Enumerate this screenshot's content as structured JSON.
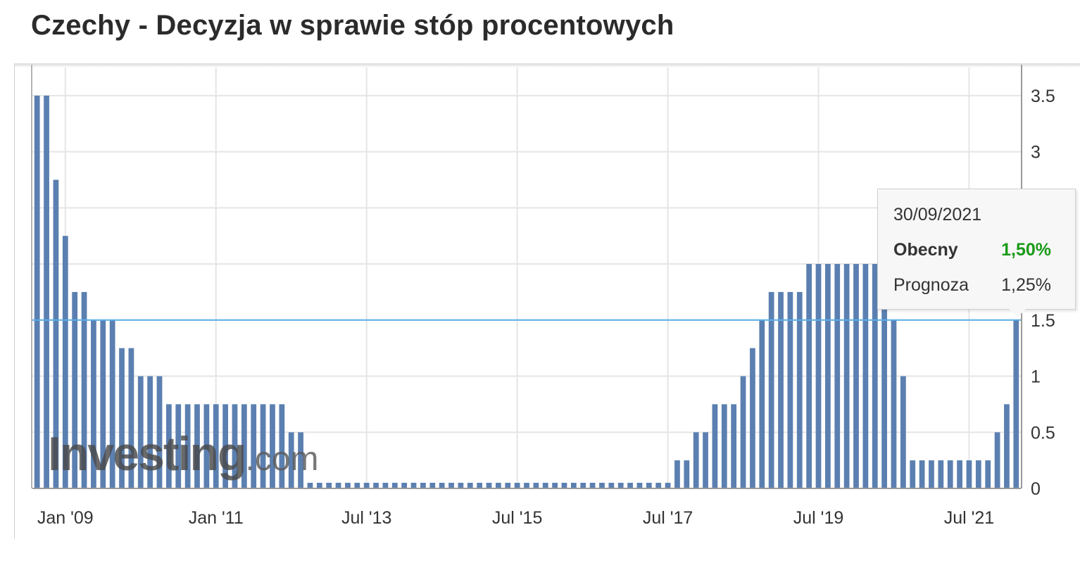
{
  "title": "Czechy - Decyzja w sprawie stóp procentowych",
  "colors": {
    "bar": "#5b7fb0",
    "current_line": "#5aaee8",
    "grid": "#e5e5e5",
    "tooltip_current": "#1a9a1a"
  },
  "tooltip": {
    "date": "30/09/2021",
    "current_label": "Obecny",
    "current_value": "1,50%",
    "forecast_label": "Prognoza",
    "forecast_value": "1,25%"
  },
  "watermark": {
    "main": "Investing",
    "suffix": ".com"
  },
  "chart_data": {
    "type": "bar",
    "title": "Czechy - Decyzja w sprawie stóp procentowych",
    "xlabel": "",
    "ylabel": "",
    "ylim": [
      0,
      3.75
    ],
    "y_ticks": [
      0,
      0.5,
      1,
      1.5,
      2,
      2.5,
      3,
      3.5
    ],
    "y_tick_labels": [
      "0",
      "0.5",
      "1",
      "1.5",
      "2",
      "2.5",
      "3",
      "3.5"
    ],
    "y_axis_position": "right",
    "x_tick_labels": [
      "Jan '09",
      "Jan '11",
      "Jul '13",
      "Jul '15",
      "Jul '17",
      "Jul '19",
      "Jul '21"
    ],
    "x_ticks_index": [
      3,
      19,
      35,
      51,
      67,
      83,
      99
    ],
    "grid": true,
    "current_value_line": 1.5,
    "values": [
      3.5,
      3.5,
      2.75,
      2.25,
      1.75,
      1.75,
      1.5,
      1.5,
      1.5,
      1.25,
      1.25,
      1.0,
      1.0,
      1.0,
      0.75,
      0.75,
      0.75,
      0.75,
      0.75,
      0.75,
      0.75,
      0.75,
      0.75,
      0.75,
      0.75,
      0.75,
      0.75,
      0.5,
      0.5,
      0.05,
      0.05,
      0.05,
      0.05,
      0.05,
      0.05,
      0.05,
      0.05,
      0.05,
      0.05,
      0.05,
      0.05,
      0.05,
      0.05,
      0.05,
      0.05,
      0.05,
      0.05,
      0.05,
      0.05,
      0.05,
      0.05,
      0.05,
      0.05,
      0.05,
      0.05,
      0.05,
      0.05,
      0.05,
      0.05,
      0.05,
      0.05,
      0.05,
      0.05,
      0.05,
      0.05,
      0.05,
      0.05,
      0.05,
      0.25,
      0.25,
      0.5,
      0.5,
      0.75,
      0.75,
      0.75,
      1.0,
      1.25,
      1.5,
      1.75,
      1.75,
      1.75,
      1.75,
      2.0,
      2.0,
      2.0,
      2.0,
      2.0,
      2.0,
      2.0,
      2.0,
      1.75,
      1.5,
      1.0,
      0.25,
      0.25,
      0.25,
      0.25,
      0.25,
      0.25,
      0.25,
      0.25,
      0.25,
      0.5,
      0.75,
      1.5
    ]
  }
}
